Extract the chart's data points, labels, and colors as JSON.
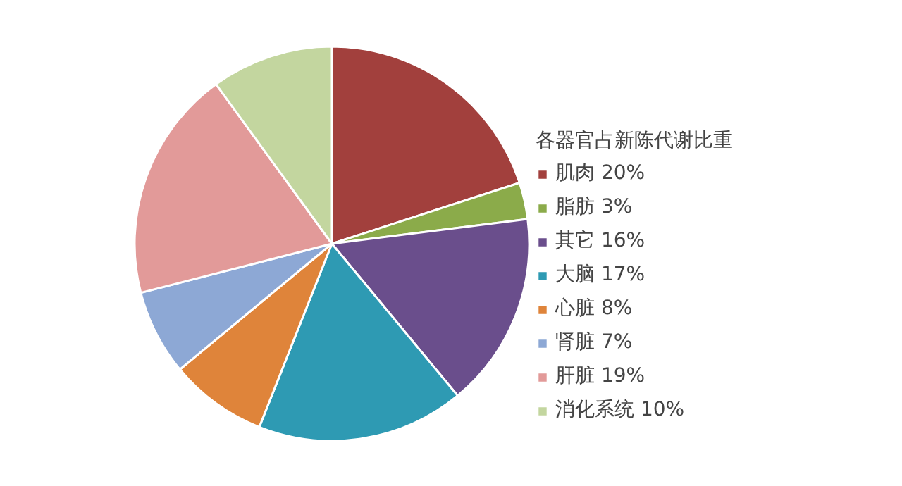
{
  "chart_data": {
    "type": "pie",
    "legend_title": "各器官占新陈代谢比重",
    "legend": "right",
    "categories": [
      "肌肉 20%",
      "脂肪 3%",
      "其它 16%",
      "大脑 17%",
      "心脏 8%",
      "肾脏 7%",
      "肝脏 19%",
      "消化系统 10%"
    ],
    "values": [
      20,
      3,
      16,
      17,
      8,
      7,
      19,
      10
    ],
    "colors": [
      "#a2403d",
      "#8bab4a",
      "#6a4e8c",
      "#2e9ab3",
      "#df843a",
      "#8da8d5",
      "#e29a99",
      "#c3d69f"
    ]
  }
}
